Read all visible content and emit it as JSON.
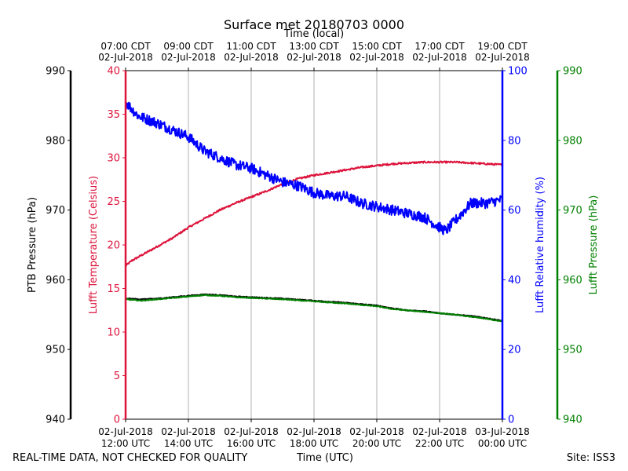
{
  "chart_data": {
    "type": "line",
    "title": "Surface met 20180703 0000",
    "xlabel": "Time (UTC)",
    "x_top_label": "Time (local)",
    "footer_left": "REAL-TIME DATA, NOT CHECKED FOR QUALITY",
    "footer_right": "Site: ISS3",
    "x_range_hours_utc": [
      12,
      24
    ],
    "x_ticks_utc": [
      {
        "hour": 12,
        "line1": "02-Jul-2018",
        "line2": "12:00 UTC"
      },
      {
        "hour": 14,
        "line1": "02-Jul-2018",
        "line2": "14:00 UTC"
      },
      {
        "hour": 16,
        "line1": "02-Jul-2018",
        "line2": "16:00 UTC"
      },
      {
        "hour": 18,
        "line1": "02-Jul-2018",
        "line2": "18:00 UTC"
      },
      {
        "hour": 20,
        "line1": "02-Jul-2018",
        "line2": "20:00 UTC"
      },
      {
        "hour": 22,
        "line1": "02-Jul-2018",
        "line2": "22:00 UTC"
      },
      {
        "hour": 24,
        "line1": "03-Jul-2018",
        "line2": "00:00 UTC"
      }
    ],
    "x_ticks_local": [
      {
        "hour": 12,
        "line1": "07:00 CDT",
        "line2": "02-Jul-2018"
      },
      {
        "hour": 14,
        "line1": "09:00 CDT",
        "line2": "02-Jul-2018"
      },
      {
        "hour": 16,
        "line1": "11:00 CDT",
        "line2": "02-Jul-2018"
      },
      {
        "hour": 18,
        "line1": "13:00 CDT",
        "line2": "02-Jul-2018"
      },
      {
        "hour": 20,
        "line1": "15:00 CDT",
        "line2": "02-Jul-2018"
      },
      {
        "hour": 22,
        "line1": "17:00 CDT",
        "line2": "02-Jul-2018"
      },
      {
        "hour": 24,
        "line1": "19:00 CDT",
        "line2": "02-Jul-2018"
      }
    ],
    "axes": [
      {
        "id": "ptb",
        "label": "PTB Pressure (hPa)",
        "color": "#000000",
        "ylim": [
          940,
          990
        ],
        "ticks": [
          940,
          950,
          960,
          970,
          980,
          990
        ]
      },
      {
        "id": "temp",
        "label": "Lufft Temperature (Celsius)",
        "color": "#dc143c",
        "ylim": [
          0,
          40
        ],
        "ticks": [
          0,
          5,
          10,
          15,
          20,
          25,
          30,
          35,
          40
        ]
      },
      {
        "id": "rh",
        "label": "Lufft Relative humidity (%)",
        "color": "#0000ff",
        "ylim": [
          0,
          100
        ],
        "ticks": [
          0,
          20,
          40,
          60,
          80,
          100
        ]
      },
      {
        "id": "lp",
        "label": "Lufft Pressure (hPa)",
        "color": "#008000",
        "ylim": [
          940,
          990
        ],
        "ticks": [
          940,
          950,
          960,
          970,
          980,
          990
        ]
      }
    ],
    "series": [
      {
        "name": "Lufft Temperature",
        "axis": "temp",
        "color": "#dc143c",
        "noise": 0.1,
        "x": [
          12.0,
          12.2,
          12.5,
          13.0,
          13.5,
          14.0,
          14.5,
          15.0,
          15.5,
          16.0,
          16.5,
          17.0,
          17.5,
          18.0,
          18.5,
          19.0,
          19.5,
          20.0,
          20.5,
          21.0,
          21.5,
          22.0,
          22.5,
          23.0,
          23.5,
          24.0
        ],
        "y": [
          17.6,
          18.2,
          18.8,
          19.8,
          20.8,
          22.0,
          23.0,
          24.0,
          24.8,
          25.5,
          26.2,
          27.0,
          27.6,
          28.0,
          28.3,
          28.6,
          28.9,
          29.1,
          29.3,
          29.4,
          29.5,
          29.5,
          29.5,
          29.4,
          29.3,
          29.2
        ]
      },
      {
        "name": "Lufft Relative humidity",
        "axis": "rh",
        "color": "#0000ff",
        "noise": 1.5,
        "x": [
          12.0,
          12.2,
          12.4,
          13.0,
          13.5,
          14.0,
          14.5,
          15.0,
          15.5,
          16.0,
          16.5,
          17.0,
          17.5,
          18.0,
          18.5,
          19.0,
          19.5,
          20.0,
          20.5,
          21.0,
          21.5,
          22.0,
          22.2,
          22.5,
          23.0,
          23.5,
          24.0
        ],
        "y": [
          91,
          89,
          87,
          85,
          83,
          81,
          77,
          75,
          73,
          72,
          70,
          68,
          67,
          65,
          64,
          64,
          62,
          61,
          60,
          59,
          58,
          55,
          54,
          57,
          62,
          62,
          63
        ]
      },
      {
        "name": "PTB Pressure",
        "axis": "ptb",
        "color": "#000000",
        "noise": 0.06,
        "x": [
          12.0,
          12.5,
          13.0,
          13.5,
          14.0,
          14.5,
          15.0,
          15.5,
          16.0,
          17.0,
          18.0,
          19.0,
          20.0,
          20.5,
          21.0,
          21.5,
          22.0,
          22.5,
          23.0,
          23.5,
          24.0
        ],
        "y": [
          957.3,
          957.2,
          957.3,
          957.5,
          957.7,
          957.9,
          957.8,
          957.6,
          957.5,
          957.3,
          957.0,
          956.7,
          956.3,
          955.9,
          955.6,
          955.5,
          955.2,
          955.0,
          954.8,
          954.5,
          954.1
        ]
      },
      {
        "name": "Lufft Pressure",
        "axis": "lp",
        "color": "#008000",
        "noise": 0.06,
        "x": [
          12.0,
          12.5,
          13.0,
          13.5,
          14.0,
          14.5,
          15.0,
          15.5,
          16.0,
          17.0,
          18.0,
          19.0,
          20.0,
          20.5,
          21.0,
          21.5,
          22.0,
          22.5,
          23.0,
          23.5,
          24.0
        ],
        "y": [
          957.2,
          957.0,
          957.2,
          957.4,
          957.6,
          957.8,
          957.7,
          957.5,
          957.4,
          957.2,
          956.9,
          956.6,
          956.2,
          955.8,
          955.6,
          955.4,
          955.2,
          955.0,
          954.7,
          954.4,
          954.0
        ]
      }
    ]
  }
}
